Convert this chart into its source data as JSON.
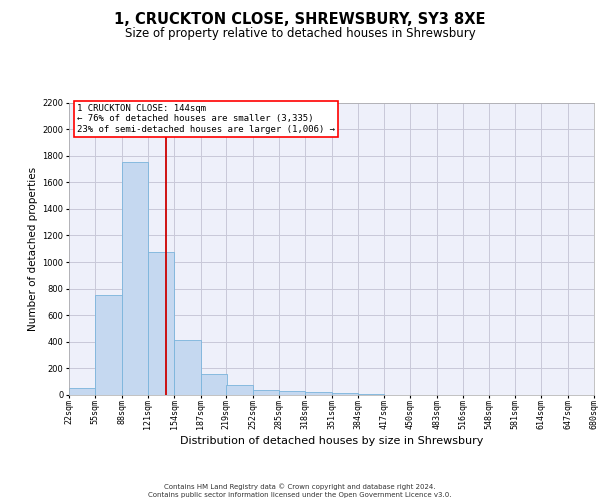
{
  "title1": "1, CRUCKTON CLOSE, SHREWSBURY, SY3 8XE",
  "title2": "Size of property relative to detached houses in Shrewsbury",
  "xlabel": "Distribution of detached houses by size in Shrewsbury",
  "ylabel": "Number of detached properties",
  "footnote1": "Contains HM Land Registry data © Crown copyright and database right 2024.",
  "footnote2": "Contains public sector information licensed under the Open Government Licence v3.0.",
  "property_size": 144,
  "property_label": "1 CRUCKTON CLOSE: 144sqm",
  "annotation_line1": "← 76% of detached houses are smaller (3,335)",
  "annotation_line2": "23% of semi-detached houses are larger (1,006) →",
  "bin_edges": [
    22,
    55,
    88,
    121,
    154,
    187,
    219,
    252,
    285,
    318,
    351,
    384,
    417,
    450,
    483,
    516,
    548,
    581,
    614,
    647,
    680
  ],
  "bar_values": [
    50,
    750,
    1750,
    1075,
    415,
    155,
    75,
    40,
    30,
    25,
    15,
    5,
    3,
    2,
    1,
    1,
    0,
    0,
    0,
    0
  ],
  "bar_color": "#c5d8f0",
  "bar_edge_color": "#7ab4dc",
  "vline_color": "#cc0000",
  "ylim": [
    0,
    2200
  ],
  "yticks": [
    0,
    200,
    400,
    600,
    800,
    1000,
    1200,
    1400,
    1600,
    1800,
    2000,
    2200
  ],
  "grid_color": "#c8c8d8",
  "background_color": "#eef0fa",
  "title_fontsize": 10.5,
  "subtitle_fontsize": 8.5,
  "xlabel_fontsize": 8,
  "ylabel_fontsize": 7.5,
  "tick_fontsize": 6,
  "annotation_fontsize": 6.5,
  "footnote_fontsize": 5
}
